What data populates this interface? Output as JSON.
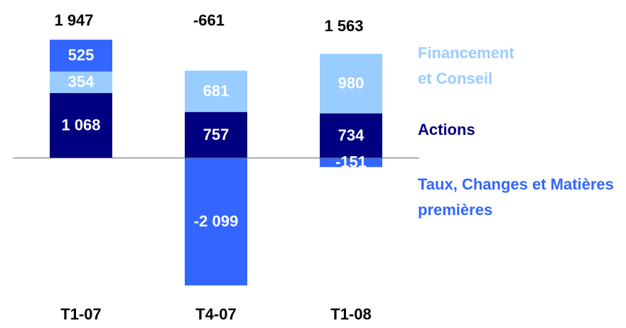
{
  "chart_data": {
    "type": "stacked_bar",
    "categories": [
      "T1-07",
      "T4-07",
      "T1-08"
    ],
    "series": [
      {
        "name": "Actions",
        "color": "#000080",
        "values": [
          1068,
          757,
          734
        ],
        "value_labels": [
          "1 068",
          "757",
          "734"
        ]
      },
      {
        "name": "Financement et Conseil",
        "color": "#99ccff",
        "values": [
          354,
          681,
          980
        ],
        "value_labels": [
          "354",
          "681",
          "980"
        ]
      },
      {
        "name": "Taux, Changes et Matières premières",
        "color": "#3366ff",
        "values": [
          525,
          -2099,
          -151
        ],
        "value_labels": [
          "525",
          "-2 099",
          "-151"
        ]
      }
    ],
    "totals": [
      1947,
      -661,
      1563
    ],
    "total_labels": [
      "1 947",
      "-661",
      "1 563"
    ],
    "ylim": [
      -2800,
      2600
    ]
  }
}
